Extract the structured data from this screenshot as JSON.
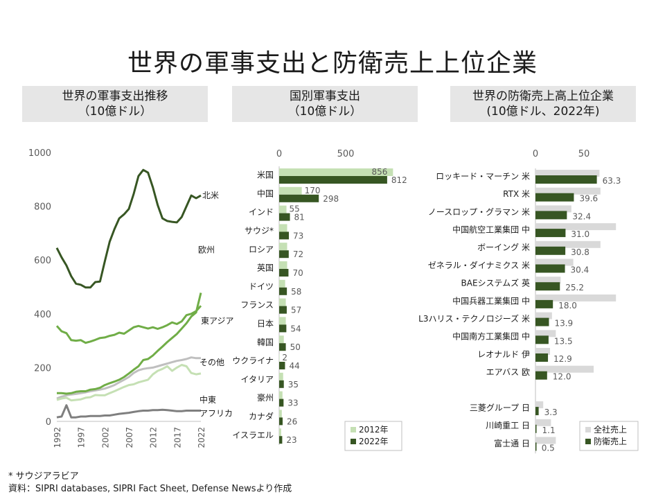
{
  "page": {
    "title": "世界の軍事支出と防衛売上上位企業",
    "footnote_mark": "*  サウジアラビア",
    "source": "資料：SIPRI databases, SIPRI Fact Sheet, Defense Newsより作成"
  },
  "colors": {
    "dark_green": "#375623",
    "mid_green": "#70ad47",
    "light_green": "#c5e0b4",
    "gray_line": "#7f7f7f",
    "light_gray": "#d9d9d9",
    "panel_bg": "#e6e6e6"
  },
  "chart_data": [
    {
      "id": "world-trend",
      "type": "line",
      "title_line1": "世界の軍事支出推移",
      "title_line2": "（10億ドル）",
      "ylim": [
        0,
        1000
      ],
      "yticks": [
        0,
        200,
        400,
        600,
        800,
        1000
      ],
      "xlim": [
        1992,
        2022
      ],
      "xticks": [
        1992,
        1997,
        2002,
        2007,
        2012,
        2017,
        2022
      ],
      "x": [
        1992,
        1993,
        1994,
        1995,
        1996,
        1997,
        1998,
        1999,
        2000,
        2001,
        2002,
        2003,
        2004,
        2005,
        2006,
        2007,
        2008,
        2009,
        2010,
        2011,
        2012,
        2013,
        2014,
        2015,
        2016,
        2017,
        2018,
        2019,
        2020,
        2021,
        2022
      ],
      "series": [
        {
          "name": "北米",
          "color": "#375623",
          "values": [
            645,
            610,
            580,
            540,
            512,
            508,
            498,
            498,
            518,
            520,
            595,
            668,
            715,
            755,
            770,
            790,
            845,
            912,
            935,
            925,
            870,
            805,
            755,
            745,
            742,
            740,
            760,
            800,
            840,
            830,
            840
          ]
        },
        {
          "name": "欧州",
          "color": "#70ad47",
          "values": [
            105,
            105,
            103,
            105,
            110,
            112,
            112,
            118,
            120,
            125,
            135,
            142,
            148,
            155,
            165,
            178,
            192,
            205,
            228,
            232,
            245,
            262,
            278,
            295,
            310,
            325,
            345,
            365,
            390,
            405,
            478
          ]
        },
        {
          "name": "東アジア",
          "color": "#70ad47",
          "values": [
            355,
            335,
            328,
            302,
            300,
            302,
            292,
            297,
            303,
            310,
            312,
            318,
            322,
            330,
            326,
            338,
            350,
            355,
            350,
            345,
            350,
            344,
            350,
            358,
            368,
            362,
            372,
            395,
            400,
            410,
            430
          ]
        },
        {
          "name": "その他",
          "color": "#bfbfbf",
          "values": [
            85,
            92,
            97,
            100,
            102,
            105,
            108,
            112,
            115,
            118,
            122,
            128,
            135,
            145,
            155,
            165,
            180,
            190,
            195,
            198,
            200,
            205,
            210,
            215,
            220,
            225,
            228,
            232,
            238,
            235,
            235
          ]
        },
        {
          "name": "中東",
          "color": "#c5e0b4",
          "values": [
            80,
            85,
            88,
            78,
            80,
            82,
            88,
            90,
            98,
            97,
            97,
            105,
            112,
            120,
            128,
            135,
            138,
            145,
            150,
            155,
            175,
            188,
            195,
            205,
            188,
            200,
            210,
            205,
            180,
            175,
            178
          ]
        },
        {
          "name": "アフリカ",
          "color": "#7f7f7f",
          "values": [
            15,
            18,
            60,
            15,
            15,
            18,
            18,
            20,
            20,
            20,
            22,
            22,
            25,
            28,
            30,
            32,
            35,
            38,
            40,
            40,
            42,
            42,
            43,
            42,
            40,
            38,
            38,
            40,
            40,
            40,
            40
          ]
        }
      ]
    },
    {
      "id": "by-country",
      "type": "bar",
      "title_line1": "国別軍事支出",
      "title_line2": "（10億ドル）",
      "xticks": [
        0,
        500
      ],
      "xlim": [
        0,
        1000
      ],
      "categories": [
        "米国",
        "中国",
        "インド",
        "サウジ*",
        "ロシア",
        "英国",
        "ドイツ",
        "フランス",
        "日本",
        "韓国",
        "ウクライナ",
        "イタリア",
        "豪州",
        "カナダ",
        "イスラエル"
      ],
      "series": [
        {
          "name": "2012年",
          "color": "#c5e0b4",
          "values": [
            856,
            170,
            55,
            60,
            60,
            60,
            45,
            50,
            50,
            35,
            2,
            30,
            25,
            20,
            15
          ],
          "labels": [
            "856",
            "170",
            "55",
            "",
            "",
            "",
            "",
            "",
            "",
            "",
            "2",
            "",
            "",
            "",
            ""
          ]
        },
        {
          "name": "2022年",
          "color": "#375623",
          "values": [
            812,
            298,
            81,
            73,
            72,
            70,
            58,
            57,
            54,
            50,
            44,
            35,
            33,
            26,
            23
          ],
          "labels": [
            "812",
            "298",
            "81",
            "73",
            "72",
            "70",
            "58",
            "57",
            "54",
            "50",
            "44",
            "35",
            "33",
            "26",
            "23"
          ]
        }
      ],
      "legend": [
        "2012年",
        "2022年"
      ],
      "legend_position": "bottom-right"
    },
    {
      "id": "top-companies",
      "type": "bar",
      "title_line1": "世界の防衛売上高上位企業",
      "title_line2": "(10億ドル、2022年)",
      "xticks": [
        0,
        50
      ],
      "xlim": [
        0,
        100
      ],
      "categories": [
        "ロッキード・マーチン 米",
        "RTX 米",
        "ノースロップ・グラマン 米",
        "中国航空工業集団 中",
        "ボーイング 米",
        "ゼネラル・ダイナミクス 米",
        "BAEシステムズ 英",
        "中国兵器工業集団 中",
        "L3ハリス・テクノロジーズ 米",
        "中国南方工業集団 中",
        "レオナルド 伊",
        "エアバス 欧",
        "",
        "三菱グループ 日",
        "川崎重工 日",
        "富士通 日"
      ],
      "series": [
        {
          "name": "全社売上",
          "color": "#d9d9d9",
          "values": [
            66,
            67,
            37,
            83,
            67,
            39,
            26,
            83,
            17,
            21,
            15,
            60,
            null,
            8,
            16,
            21
          ]
        },
        {
          "name": "防衛売上",
          "color": "#375623",
          "values": [
            63.3,
            39.6,
            32.4,
            31.0,
            30.8,
            30.4,
            25.2,
            18.0,
            13.9,
            13.5,
            12.9,
            12.0,
            null,
            3.3,
            1.1,
            0.5
          ],
          "labels": [
            "63.3",
            "39.6",
            "32.4",
            "31.0",
            "30.8",
            "30.4",
            "25.2",
            "18.0",
            "13.9",
            "13.5",
            "12.9",
            "12.0",
            "",
            "3.3",
            "1.1",
            "0.5"
          ]
        }
      ],
      "legend": [
        "全社売上",
        "防衛売上"
      ],
      "legend_position": "bottom-right"
    }
  ]
}
